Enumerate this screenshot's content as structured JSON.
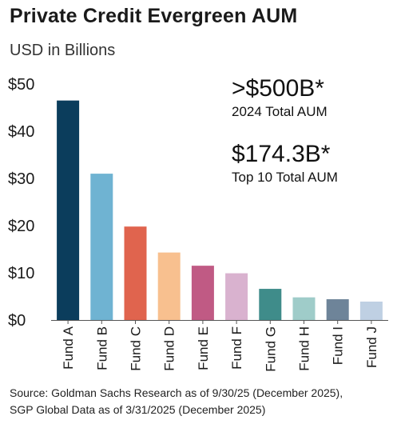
{
  "chart_data": {
    "type": "bar",
    "title": "Private Credit Evergreen AUM",
    "subtitle": "USD in Billions",
    "categories": [
      "Fund A",
      "Fund B",
      "Fund C",
      "Fund D",
      "Fund E",
      "Fund F",
      "Fund G",
      "Fund H",
      "Fund I",
      "Fund J"
    ],
    "values": [
      46.5,
      31.0,
      19.8,
      14.3,
      11.5,
      9.9,
      6.6,
      4.8,
      4.4,
      3.9
    ],
    "colors": [
      "#0b3d5c",
      "#6fb3d2",
      "#e0644e",
      "#f8c08f",
      "#c05a84",
      "#d9b2cf",
      "#3f8c8a",
      "#9fccc9",
      "#6e8499",
      "#bfd0e3"
    ],
    "ylim": [
      0,
      50
    ],
    "yticks": [
      0,
      10,
      20,
      30,
      40,
      50
    ],
    "ytick_labels": [
      "$0",
      "$10",
      "$20",
      "$30",
      "$40",
      "$50"
    ],
    "xlabel": "",
    "ylabel": "",
    "grid": false,
    "annotations": [
      {
        "value": ">$500B*",
        "label": "2024 Total AUM"
      },
      {
        "value": "$174.3B*",
        "label": "Top 10 Total AUM"
      }
    ]
  },
  "source": [
    "Source: Goldman Sachs Research as of 9/30/25 (December 2025),",
    "SGP Global Data as of 3/31/2025 (December 2025)"
  ]
}
